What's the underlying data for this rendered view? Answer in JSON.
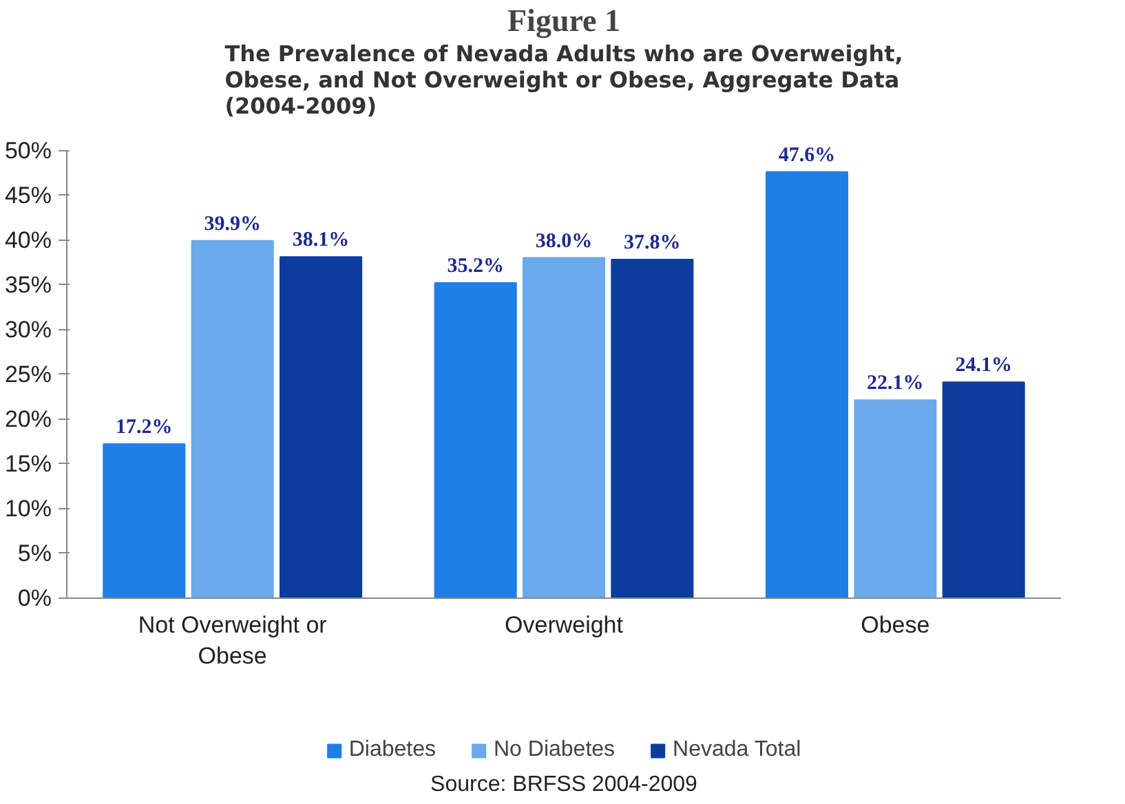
{
  "chart_data": {
    "type": "bar",
    "title": "Figure 1",
    "subtitle": "The Prevalence of Nevada Adults who are Overweight,\nObese, and Not Overweight or Obese, Aggregate Data\n(2004-2009)",
    "categories": [
      "Not Overweight or Obese",
      "Overweight",
      "Obese"
    ],
    "series": [
      {
        "name": "Diabetes",
        "color": "#1e7fe6",
        "values": [
          17.2,
          35.2,
          47.6
        ],
        "value_labels": [
          "17.2%",
          "35.2%",
          "47.6%"
        ]
      },
      {
        "name": "No Diabetes",
        "color": "#6aa9ea",
        "values": [
          39.9,
          38.0,
          22.1
        ],
        "value_labels": [
          "39.9%",
          "38.0%",
          "22.1%"
        ]
      },
      {
        "name": "Nevada Total",
        "color": "#0c3d9e",
        "values": [
          38.1,
          37.8,
          24.1
        ],
        "value_labels": [
          "38.1%",
          "37.8%",
          "24.1%"
        ]
      }
    ],
    "ylim": [
      0,
      50
    ],
    "yticks": [
      {
        "value": 0,
        "label": "0%"
      },
      {
        "value": 5,
        "label": "5%"
      },
      {
        "value": 10,
        "label": "10%"
      },
      {
        "value": 15,
        "label": "15%"
      },
      {
        "value": 20,
        "label": "20%"
      },
      {
        "value": 25,
        "label": "25%"
      },
      {
        "value": 30,
        "label": "30%"
      },
      {
        "value": 35,
        "label": "35%"
      },
      {
        "value": 40,
        "label": "40%"
      },
      {
        "value": 45,
        "label": "45%"
      },
      {
        "value": 50,
        "label": "50%"
      }
    ],
    "grid": false,
    "legend": "bottom",
    "annotations": [
      "Source: BRFSS 2004-2009"
    ]
  }
}
